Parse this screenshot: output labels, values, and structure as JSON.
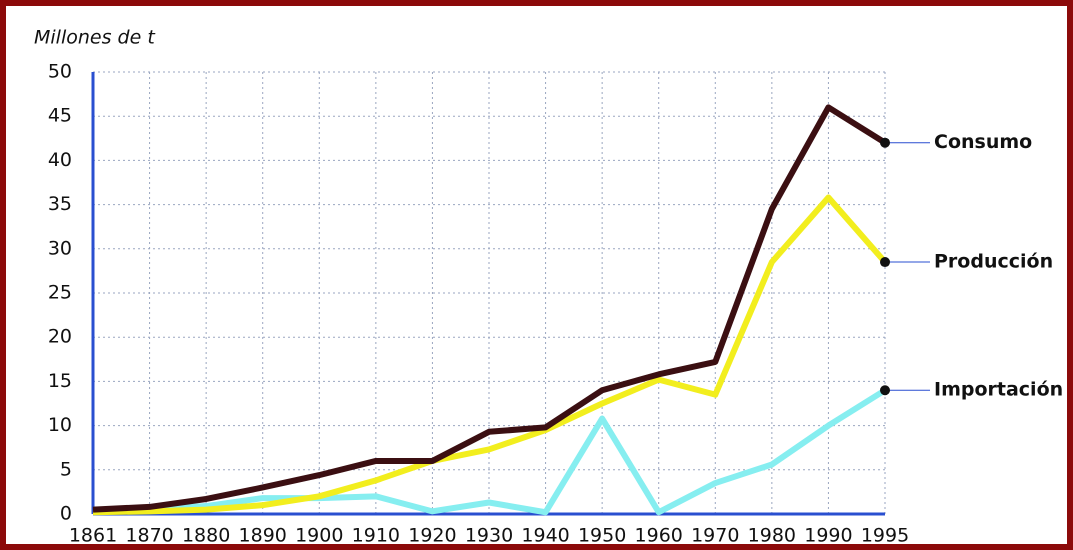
{
  "chart_data": {
    "type": "line",
    "y_label": "Millones de t",
    "categories": [
      "1861",
      "1870",
      "1880",
      "1890",
      "1900",
      "1910",
      "1920",
      "1930",
      "1940",
      "1950",
      "1960",
      "1970",
      "1980",
      "1990",
      "1995"
    ],
    "series": [
      {
        "name": "Consumo",
        "color": "#3b0f12",
        "values": [
          0.5,
          0.8,
          1.7,
          3,
          4.4,
          6,
          6,
          9.3,
          9.8,
          14,
          15.8,
          17.2,
          34.5,
          46,
          42
        ]
      },
      {
        "name": "Producción",
        "color": "#f2ee1e",
        "values": [
          0.2,
          0.3,
          0.5,
          1,
          2,
          3.8,
          6,
          7.3,
          9.5,
          12.5,
          15.2,
          13.5,
          28.5,
          35.8,
          28.5
        ]
      },
      {
        "name": "Importación",
        "color": "#86eef0",
        "values": [
          0.5,
          0.5,
          0.9,
          1.8,
          1.8,
          2,
          0.3,
          1.3,
          0.2,
          10.8,
          0.2,
          3.5,
          5.6,
          10,
          14
        ]
      }
    ],
    "ylim": [
      0,
      50
    ],
    "yticks": [
      0,
      5,
      10,
      15,
      20,
      25,
      30,
      35,
      40,
      45,
      50
    ],
    "grid": true
  }
}
